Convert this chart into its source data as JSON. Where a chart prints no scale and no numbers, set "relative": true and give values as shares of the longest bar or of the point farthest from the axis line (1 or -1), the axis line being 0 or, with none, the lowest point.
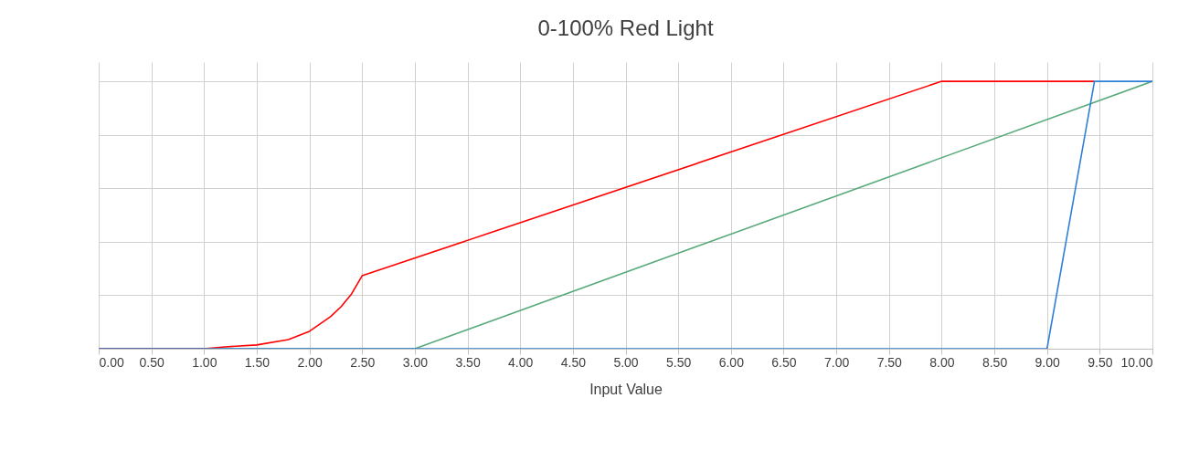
{
  "chart_data": {
    "type": "line",
    "title": "0-100% Red Light",
    "xlabel": "Input Value",
    "relative": true,
    "grid": true,
    "legend": false,
    "line_style": "solid",
    "marker": "none",
    "xlim": [
      0,
      10
    ],
    "xticks": [
      {
        "value": 0,
        "label": "0.00"
      },
      {
        "value": 0.5,
        "label": "0.50"
      },
      {
        "value": 1,
        "label": "1.00"
      },
      {
        "value": 1.5,
        "label": "1.50"
      },
      {
        "value": 2,
        "label": "2.00"
      },
      {
        "value": 2.5,
        "label": "2.50"
      },
      {
        "value": 3,
        "label": "3.00"
      },
      {
        "value": 3.5,
        "label": "3.50"
      },
      {
        "value": 4,
        "label": "4.00"
      },
      {
        "value": 4.5,
        "label": "4.50"
      },
      {
        "value": 5,
        "label": "5.00"
      },
      {
        "value": 5.5,
        "label": "5.50"
      },
      {
        "value": 6,
        "label": "6.00"
      },
      {
        "value": 6.5,
        "label": "6.50"
      },
      {
        "value": 7,
        "label": "7.00"
      },
      {
        "value": 7.5,
        "label": "7.50"
      },
      {
        "value": 8,
        "label": "8.00"
      },
      {
        "value": 8.5,
        "label": "8.50"
      },
      {
        "value": 9,
        "label": "9.00"
      },
      {
        "value": 9.5,
        "label": "9.50"
      },
      {
        "value": 10,
        "label": "10.00"
      }
    ],
    "series": [
      {
        "color": "#5aab7b",
        "x": [
          0,
          3,
          10
        ],
        "values": [
          0,
          0,
          1
        ]
      },
      {
        "color": "#ff0000",
        "x": [
          0,
          1,
          1.2,
          1.5,
          1.8,
          2,
          2.2,
          2.3,
          2.4,
          2.5,
          8,
          9.45
        ],
        "values": [
          0,
          0,
          0.007,
          0.014,
          0.034,
          0.065,
          0.12,
          0.157,
          0.205,
          0.273,
          1,
          1
        ]
      },
      {
        "color": "#2e7fd6",
        "x": [
          0,
          9,
          9.45,
          10
        ],
        "values": [
          0,
          0,
          1,
          1
        ]
      }
    ]
  }
}
